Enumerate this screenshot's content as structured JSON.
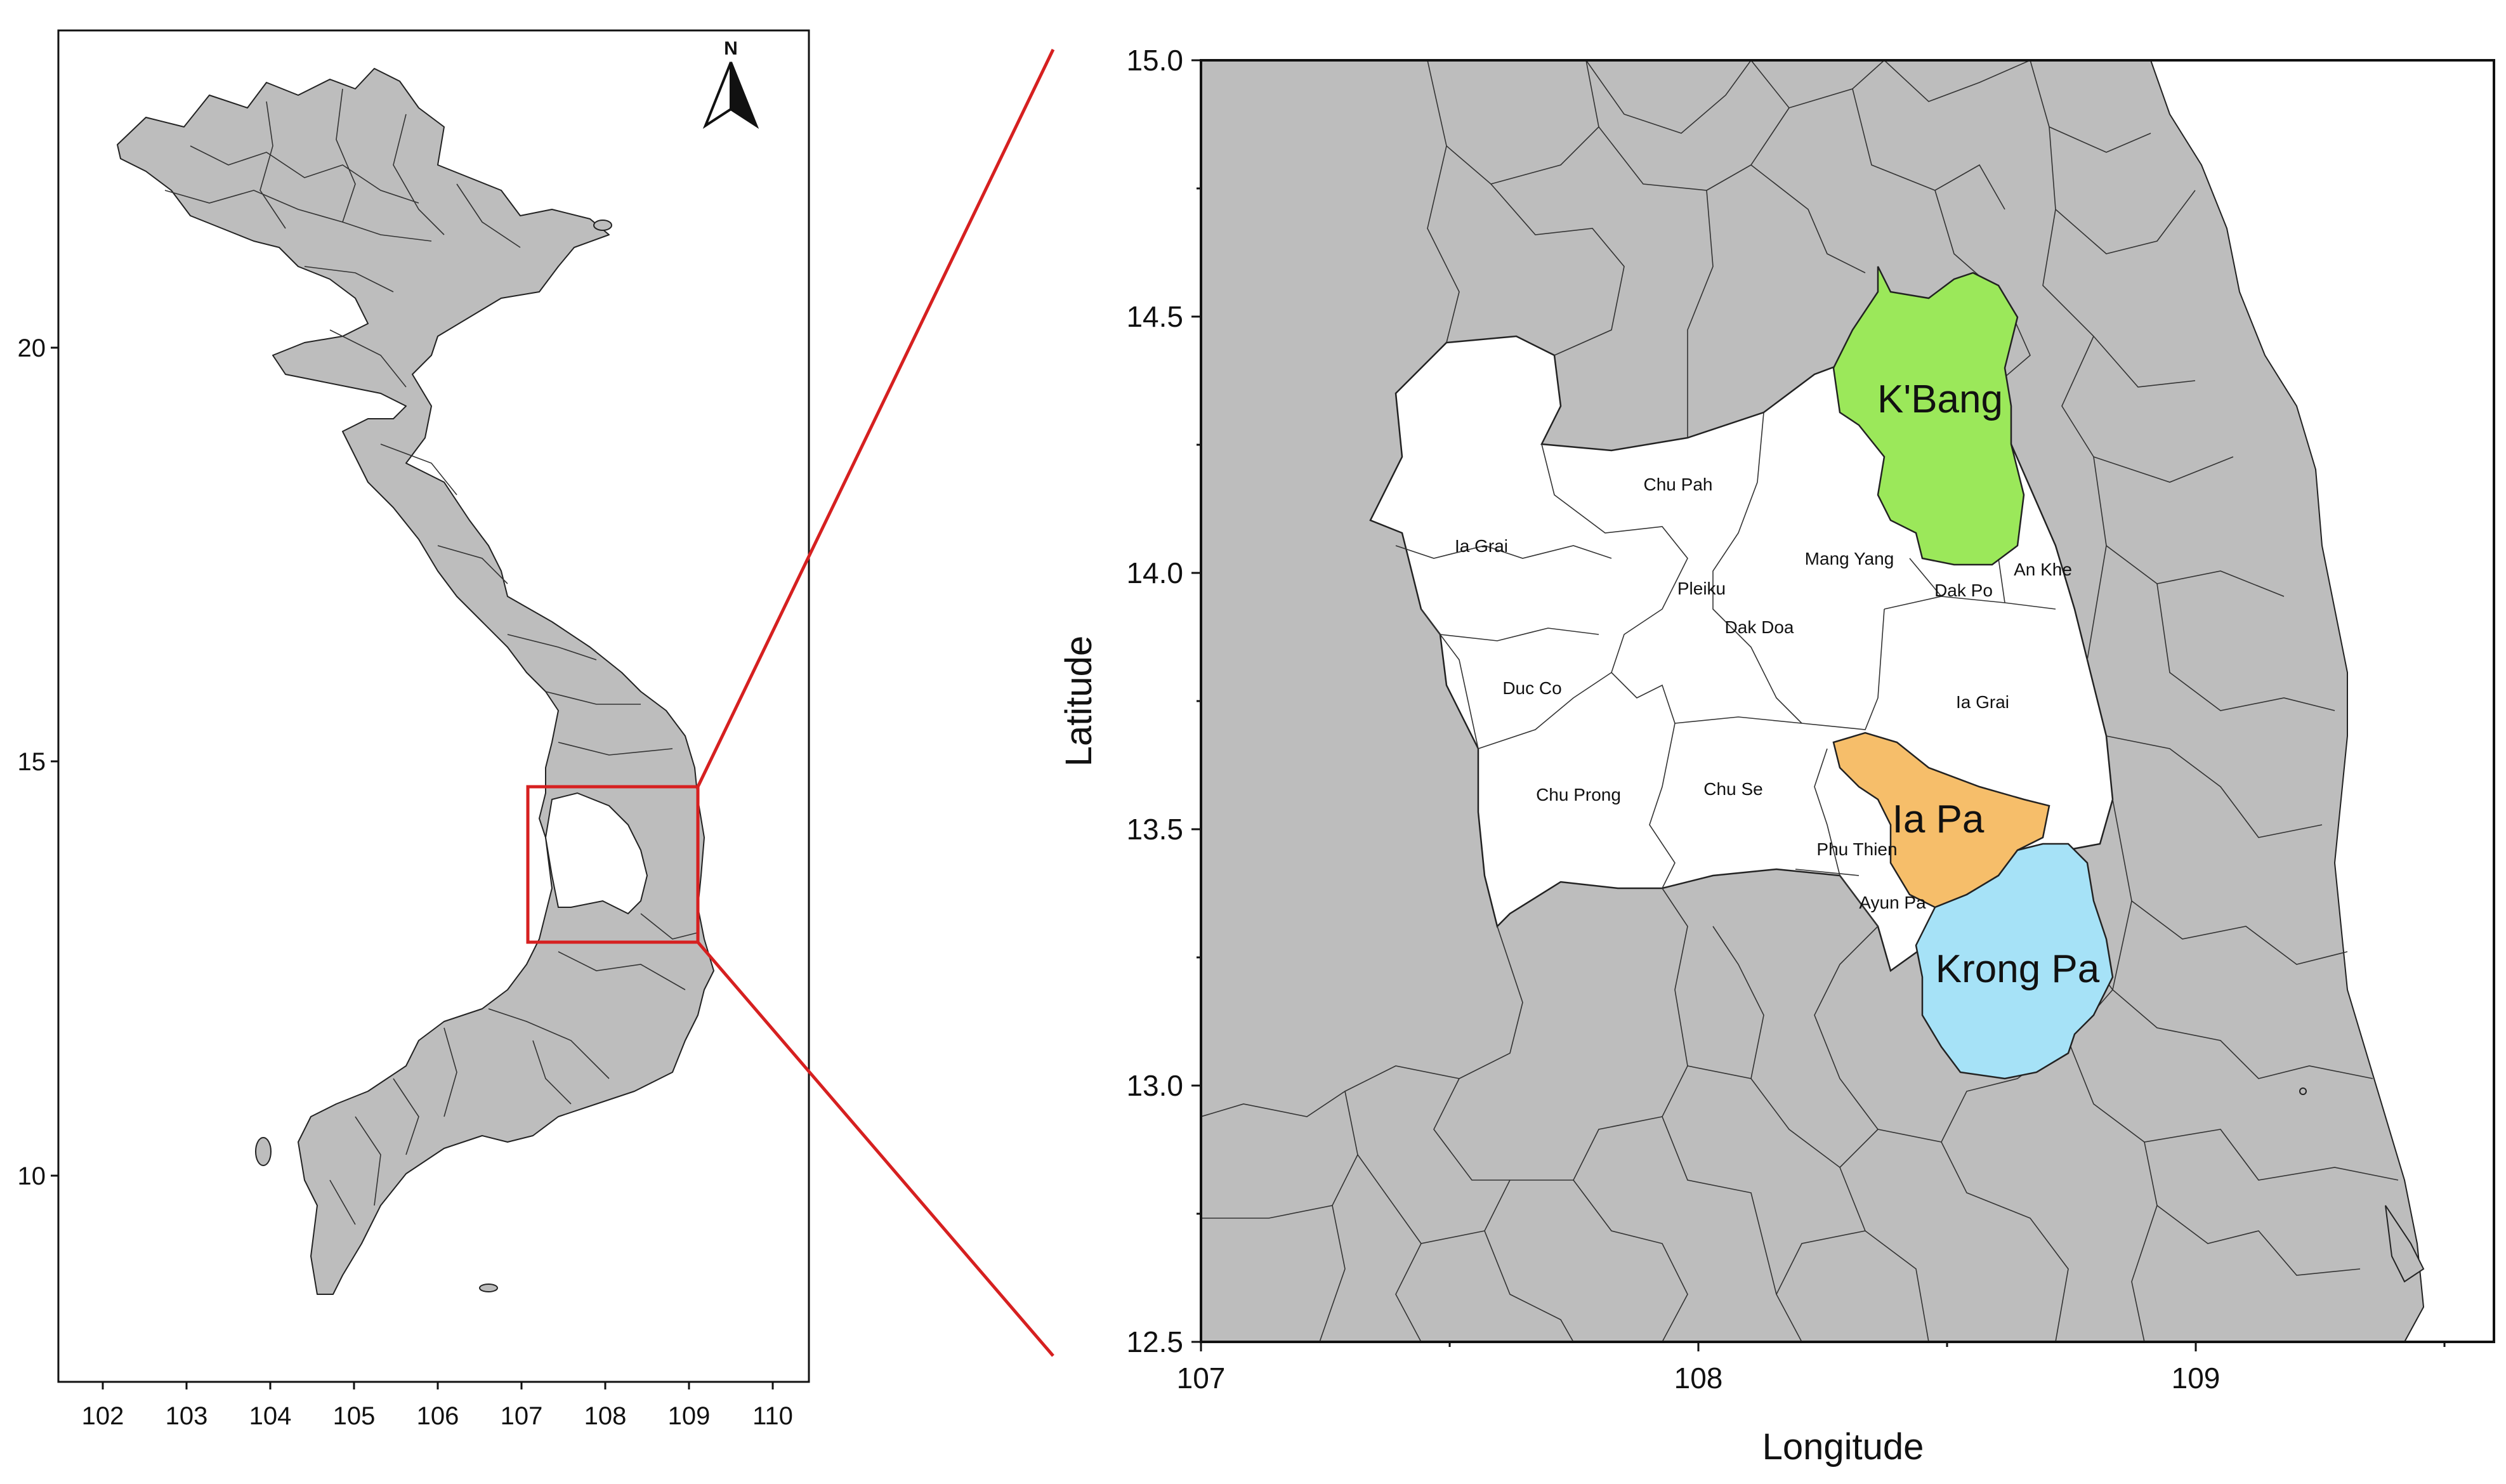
{
  "overview_map": {
    "y_ticks": [
      "20",
      "15",
      "10"
    ],
    "x_ticks": [
      "102",
      "103",
      "104",
      "105",
      "106",
      "107",
      "108",
      "109",
      "110"
    ],
    "north_arrow_label": "N"
  },
  "detail_map": {
    "xlabel": "Longitude",
    "ylabel": "Latitude",
    "x_ticks": [
      "107",
      "108",
      "109"
    ],
    "y_ticks": [
      "15.0",
      "14.5",
      "14.0",
      "13.5",
      "13.0",
      "12.5"
    ],
    "xlim": [
      107,
      109.6
    ],
    "ylim": [
      12.5,
      15.0
    ],
    "highlighted_districts": [
      {
        "name": "K'Bang",
        "color": "#9be85a"
      },
      {
        "name": "Ia Pa",
        "color": "#f6be6a"
      },
      {
        "name": "Krong Pa",
        "color": "#a6e2f7"
      }
    ],
    "districts": [
      "Chu Pah",
      "Ia Grai",
      "Mang Yang",
      "Pleiku",
      "An Khe",
      "Dak Po",
      "Dak Doa",
      "Duc Co",
      "Ia Grai",
      "Chu Prong",
      "Chu Se",
      "Phu Thien",
      "Ayun Pa"
    ]
  },
  "colors": {
    "land": "#bdbdbd",
    "study_area": "#ffffff",
    "zoom_box": "#d62020"
  }
}
